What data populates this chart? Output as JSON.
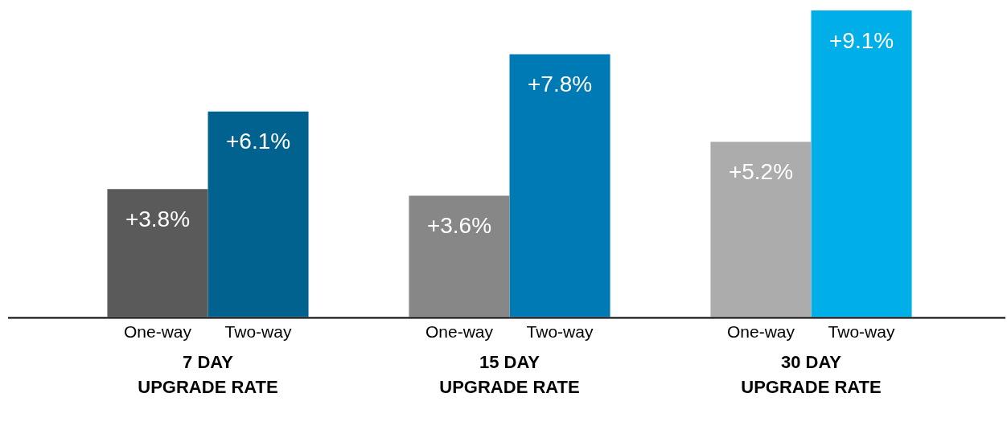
{
  "chart_data": {
    "type": "bar",
    "categories": [
      "7 DAY\nUPGRADE RATE",
      "15 DAY\nUPGRADE RATE",
      "30 DAY\nUPGRADE RATE"
    ],
    "series": [
      {
        "name": "One-way",
        "colors": [
          "#5a5a5a",
          "#878787",
          "#acacac"
        ],
        "values": [
          3.8,
          3.6,
          5.2
        ],
        "value_labels": [
          "+3.8%",
          "+3.6%",
          "+5.2%"
        ]
      },
      {
        "name": "Two-way",
        "colors": [
          "#02628f",
          "#007ab5",
          "#00aee8"
        ],
        "values": [
          6.1,
          7.8,
          9.1
        ],
        "value_labels": [
          "+6.1%",
          "+7.8%",
          "+9.1%"
        ]
      }
    ]
  }
}
